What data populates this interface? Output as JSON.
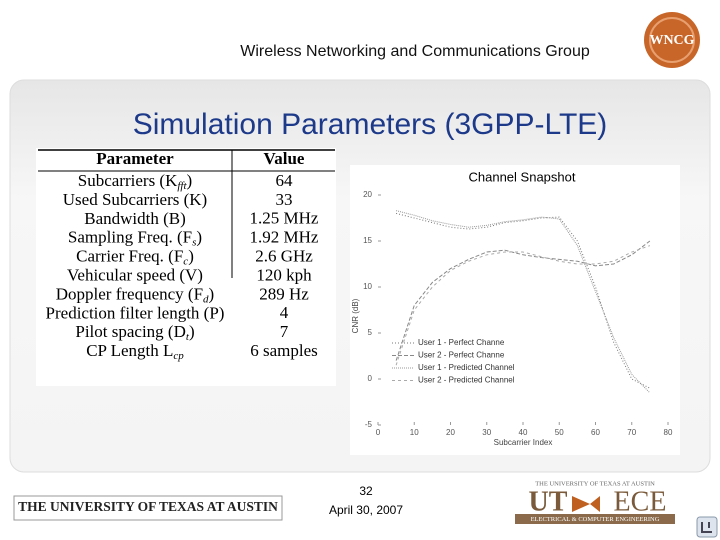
{
  "header": {
    "group": "Wireless Networking and Communications Group",
    "logo": "WNCG"
  },
  "title": "Simulation Parameters (3GPP-LTE)",
  "table": {
    "columns": [
      "Parameter",
      "Value"
    ],
    "rows": [
      {
        "label": "Subcarriers (K",
        "sub": "fft",
        "end": ")",
        "value": "64"
      },
      {
        "label": "Used Subcarriers (K)",
        "value": "33"
      },
      {
        "label": "Bandwidth (B)",
        "value": "1.25 MHz"
      },
      {
        "label": "Sampling Freq. (F",
        "sub": "s",
        "end": ")",
        "value": "1.92 MHz"
      },
      {
        "label": "Carrier Freq. (F",
        "sub": "c",
        "end": ")",
        "value": "2.6 GHz"
      },
      {
        "label": "Vehicular speed (V)",
        "value": "120 kph"
      },
      {
        "label": "Doppler frequency (F",
        "sub": "d",
        "end": ")",
        "value": "289 Hz"
      },
      {
        "label": "Prediction filter length (P)",
        "value": "4"
      },
      {
        "label": "Pilot spacing (D",
        "sub": "t",
        "end": ")",
        "value": "7"
      },
      {
        "label": "CP Length L",
        "sub": "cp",
        "value": "6 samples"
      }
    ]
  },
  "chart_data": {
    "type": "line",
    "title": "Channel Snapshot",
    "xlabel": "Subcarrier Index",
    "ylabel": "CNR (dB)",
    "x": [
      5,
      10,
      15,
      20,
      25,
      30,
      35,
      40,
      45,
      50,
      55,
      60,
      65,
      70,
      75
    ],
    "series": [
      {
        "name": "User 1 - Perfect Channe",
        "color": "#777777",
        "values": [
          18,
          17.5,
          17,
          16.5,
          16.3,
          16.5,
          17,
          17.2,
          17.5,
          17.6,
          15,
          10,
          4,
          0,
          -1
        ]
      },
      {
        "name": "User 2 - Perfect Channe",
        "color": "#888888",
        "values": [
          2,
          8,
          10.5,
          12,
          13,
          13.8,
          14,
          13.5,
          13.2,
          13,
          12.8,
          12.3,
          12.5,
          13.5,
          15
        ]
      },
      {
        "name": "User 1 - Predicted Channel",
        "color": "#999999",
        "values": [
          18.3,
          17.8,
          17.2,
          16.8,
          16.5,
          16.7,
          17.1,
          17.3,
          17.6,
          17.4,
          14.5,
          9.5,
          4.5,
          0.5,
          -1.5
        ]
      },
      {
        "name": "User 2 - Predicted Channel",
        "color": "#aaaaaa",
        "values": [
          1.5,
          7.5,
          10,
          11.8,
          12.8,
          13.5,
          13.8,
          13.8,
          13.3,
          12.8,
          12.5,
          12.5,
          12.8,
          13.8,
          14.5
        ]
      }
    ],
    "xlim": [
      0,
      80
    ],
    "xticks": [
      0,
      10,
      20,
      30,
      40,
      50,
      60,
      70,
      80
    ],
    "ylim": [
      -5,
      20
    ],
    "yticks": [
      -5,
      0,
      5,
      10,
      15,
      20
    ]
  },
  "footer": {
    "page": "32",
    "date": "April 30, 2007",
    "university": "THE UNIVERSITY OF TEXAS AT AUSTIN",
    "ut": "UT",
    "ece": "ECE",
    "dept": "ELECTRICAL & COMPUTER ENGINEERING"
  }
}
